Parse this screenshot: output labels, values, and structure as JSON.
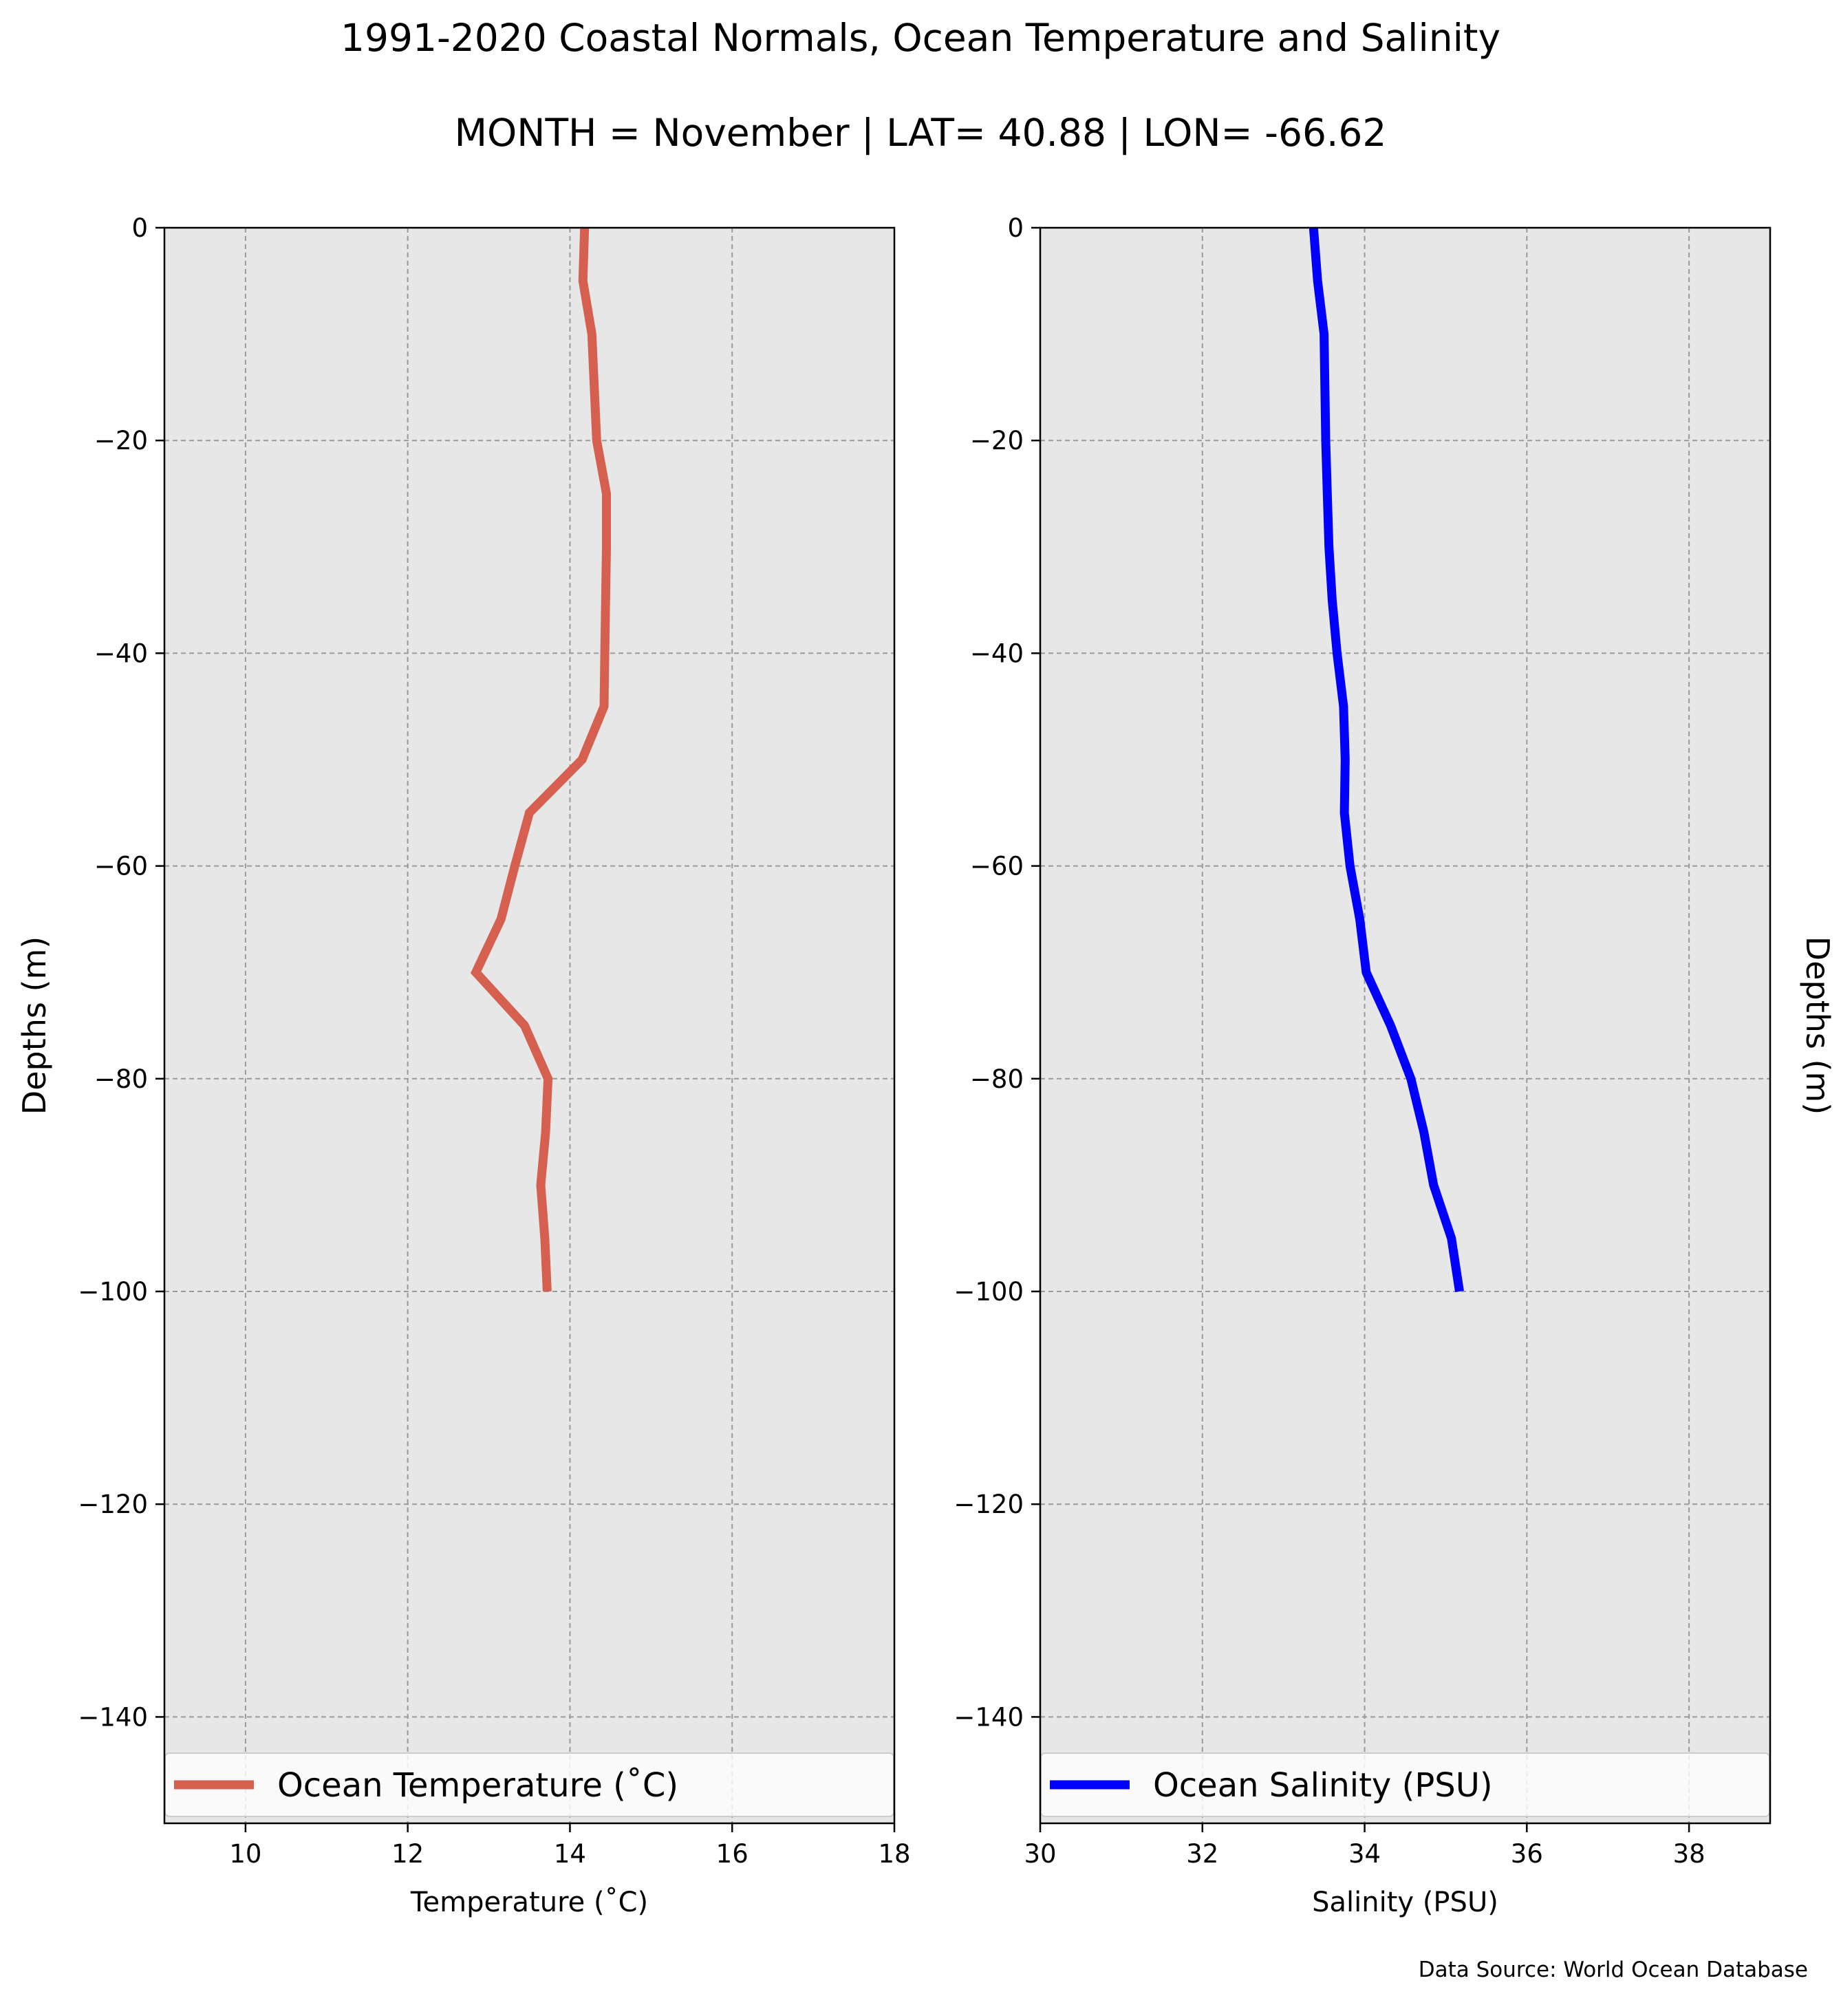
{
  "figure": {
    "title_line1": "1991-2020 Coastal Normals, Ocean Temperature and Salinity",
    "title_line2": "MONTH = November | LAT= 40.88 | LON= -66.62",
    "source": "Data Source: World Ocean Database"
  },
  "chart_data": [
    {
      "type": "line",
      "orientation": "profile (value on x, depth on y)",
      "xlabel": "Temperature ($^\\circ$C)",
      "xlabel_display": "Temperature (˚C)",
      "ylabel": "Depths (m)",
      "ylabel_position": "left",
      "xlim": [
        9,
        18
      ],
      "ylim": [
        -150,
        0
      ],
      "xticks": [
        10,
        12,
        14,
        16,
        18
      ],
      "xtick_labels": [
        "10",
        "12",
        "14",
        "16",
        "18"
      ],
      "yticks": [
        0,
        -20,
        -40,
        -60,
        -80,
        -100,
        -120,
        -140
      ],
      "ytick_labels": [
        "0",
        "−20",
        "−40",
        "−60",
        "−80",
        "−100",
        "−120",
        "−140"
      ],
      "grid": true,
      "background": "#e7e7e7",
      "legend_position": "bottom",
      "series": [
        {
          "name": "Ocean Temperature (˚C)",
          "color": "#d66050",
          "depths": [
            0,
            -5,
            -10,
            -20,
            -25,
            -30,
            -35,
            -40,
            -45,
            -50,
            -55,
            -60,
            -65,
            -70,
            -75,
            -80,
            -85,
            -90,
            -95,
            -100
          ],
          "values": [
            14.18,
            14.16,
            14.27,
            14.33,
            14.45,
            14.45,
            14.44,
            14.43,
            14.42,
            14.15,
            13.5,
            13.32,
            13.15,
            12.84,
            13.44,
            13.73,
            13.7,
            13.64,
            13.69,
            13.72
          ]
        }
      ]
    },
    {
      "type": "line",
      "orientation": "profile (value on x, depth on y)",
      "xlabel": "Salinity (PSU)",
      "xlabel_display": "Salinity (PSU)",
      "ylabel": "Depths (m)",
      "ylabel_position": "right",
      "xlim": [
        30,
        39
      ],
      "ylim": [
        -150,
        0
      ],
      "xticks": [
        30,
        32,
        34,
        36,
        38
      ],
      "xtick_labels": [
        "30",
        "32",
        "34",
        "36",
        "38"
      ],
      "yticks": [
        0,
        -20,
        -40,
        -60,
        -80,
        -100,
        -120,
        -140
      ],
      "ytick_labels": [
        "0",
        "−20",
        "−40",
        "−60",
        "−80",
        "−100",
        "−120",
        "−140"
      ],
      "grid": true,
      "background": "#e7e7e7",
      "legend_position": "bottom",
      "series": [
        {
          "name": "Ocean Salinity (PSU)",
          "color": "#0000ff",
          "depths": [
            0,
            -5,
            -10,
            -20,
            -25,
            -30,
            -35,
            -40,
            -45,
            -50,
            -55,
            -60,
            -65,
            -70,
            -75,
            -80,
            -85,
            -90,
            -95,
            -100
          ],
          "values": [
            33.37,
            33.42,
            33.5,
            33.52,
            33.54,
            33.56,
            33.6,
            33.66,
            33.74,
            33.76,
            33.75,
            33.82,
            33.94,
            34.02,
            34.32,
            34.57,
            34.73,
            34.85,
            35.07,
            35.17
          ]
        }
      ]
    }
  ]
}
